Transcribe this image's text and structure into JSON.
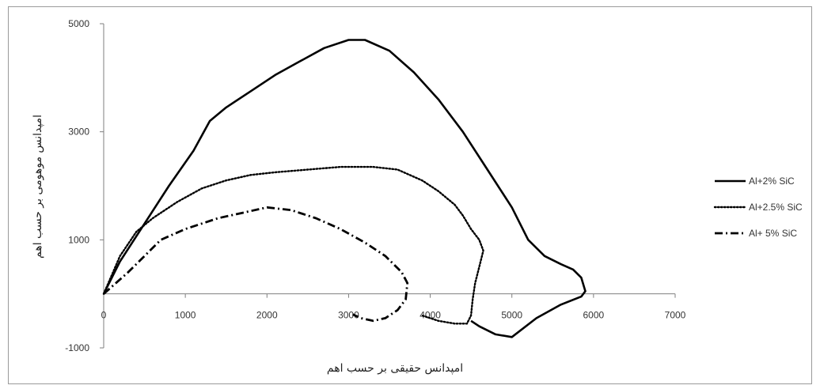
{
  "chart_data": {
    "type": "line",
    "title": "",
    "xlabel": "امپدانس حقیقی بر حسب اهم",
    "ylabel": "امپدانس موهومی بر حسب اهم",
    "xlim": [
      0,
      7000
    ],
    "ylim": [
      -1000,
      5000
    ],
    "x_ticks": [
      "0",
      "1000",
      "2000",
      "3000",
      "4000",
      "5000",
      "6000",
      "7000"
    ],
    "y_ticks": [
      "-1000",
      "1000",
      "3000",
      "5000"
    ],
    "x_tick_values": [
      0,
      1000,
      2000,
      3000,
      4000,
      5000,
      6000,
      7000
    ],
    "y_tick_values": [
      -1000,
      1000,
      3000,
      5000
    ],
    "grid": false,
    "legend_position": "right",
    "series": [
      {
        "name": "Al+2% SiC",
        "style": "solid",
        "x": [
          0,
          200,
          500,
          800,
          1100,
          1300,
          1500,
          1800,
          2100,
          2400,
          2700,
          3000,
          3200,
          3500,
          3800,
          4100,
          4400,
          4700,
          5000,
          5200,
          5400,
          5600,
          5750,
          5850,
          5900,
          5850,
          5600,
          5300,
          5000,
          4800,
          4600,
          4500
        ],
        "y": [
          0,
          600,
          1300,
          2000,
          2650,
          3200,
          3450,
          3750,
          4050,
          4300,
          4550,
          4700,
          4700,
          4500,
          4100,
          3600,
          3000,
          2300,
          1600,
          1000,
          700,
          550,
          450,
          300,
          50,
          -50,
          -200,
          -450,
          -800,
          -750,
          -600,
          -500
        ]
      },
      {
        "name": "Al+2.5% SiC",
        "style": "dotted",
        "x": [
          0,
          200,
          400,
          600,
          900,
          1200,
          1500,
          1800,
          2100,
          2500,
          2900,
          3300,
          3600,
          3900,
          4100,
          4300,
          4400,
          4500,
          4600,
          4650,
          4600,
          4550,
          4520,
          4500,
          4450,
          4300,
          4100,
          3900
        ],
        "y": [
          0,
          700,
          1150,
          1400,
          1700,
          1950,
          2100,
          2200,
          2250,
          2300,
          2350,
          2350,
          2300,
          2100,
          1900,
          1650,
          1450,
          1200,
          1000,
          800,
          500,
          200,
          -100,
          -400,
          -550,
          -550,
          -500,
          -400
        ]
      },
      {
        "name": "Al+ 5% SiC",
        "style": "dashdot",
        "x": [
          0,
          300,
          500,
          700,
          1000,
          1400,
          1700,
          2000,
          2300,
          2600,
          2900,
          3200,
          3450,
          3650,
          3720,
          3700,
          3600,
          3450,
          3300,
          3150,
          3050
        ],
        "y": [
          0,
          400,
          700,
          1000,
          1200,
          1400,
          1500,
          1600,
          1550,
          1400,
          1200,
          950,
          700,
          400,
          200,
          -100,
          -300,
          -450,
          -500,
          -450,
          -380
        ]
      }
    ]
  }
}
